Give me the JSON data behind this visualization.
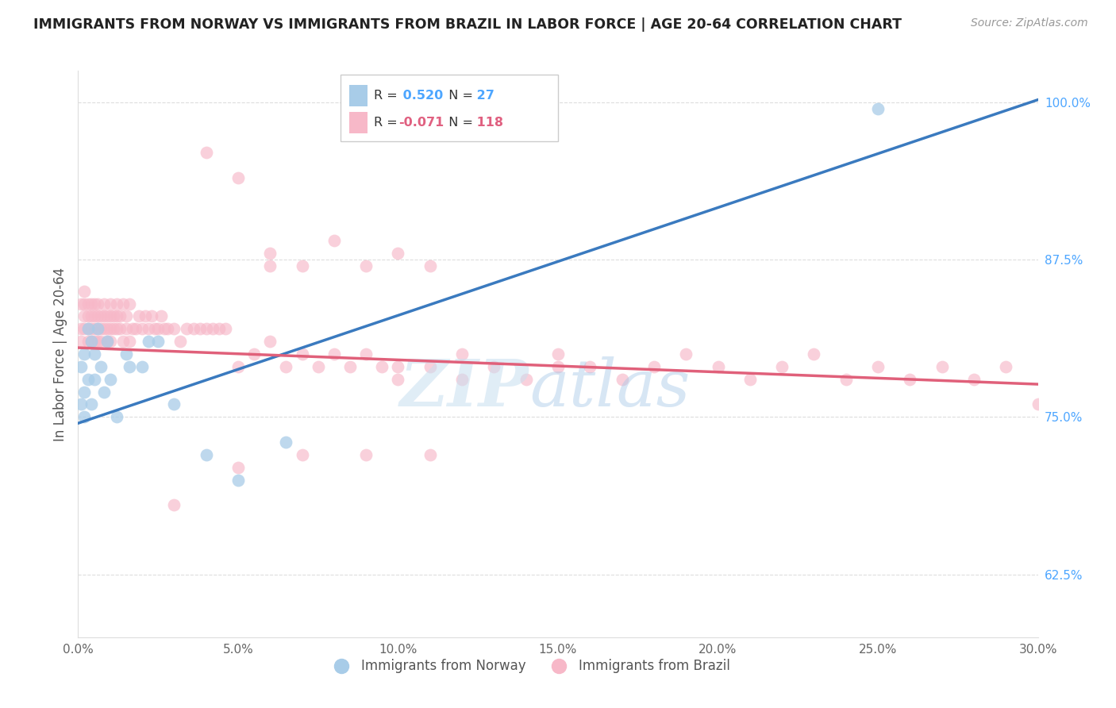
{
  "title": "IMMIGRANTS FROM NORWAY VS IMMIGRANTS FROM BRAZIL IN LABOR FORCE | AGE 20-64 CORRELATION CHART",
  "source": "Source: ZipAtlas.com",
  "ylabel": "In Labor Force | Age 20-64",
  "legend_norway": "Immigrants from Norway",
  "legend_brazil": "Immigrants from Brazil",
  "R_norway": 0.52,
  "N_norway": 27,
  "R_brazil": -0.071,
  "N_brazil": 118,
  "norway_color": "#a8cce8",
  "brazil_color": "#f7b8c8",
  "norway_line_color": "#3a7abf",
  "brazil_line_color": "#e0607a",
  "xmin": 0.0,
  "xmax": 0.3,
  "ymin": 0.575,
  "ymax": 1.025,
  "yticks": [
    0.625,
    0.75,
    0.875,
    1.0
  ],
  "ytick_labels": [
    "62.5%",
    "75.0%",
    "87.5%",
    "100.0%"
  ],
  "norway_x": [
    0.001,
    0.001,
    0.002,
    0.002,
    0.002,
    0.003,
    0.003,
    0.004,
    0.004,
    0.005,
    0.005,
    0.006,
    0.007,
    0.008,
    0.009,
    0.01,
    0.012,
    0.015,
    0.016,
    0.02,
    0.022,
    0.025,
    0.03,
    0.04,
    0.05,
    0.065,
    0.25
  ],
  "norway_y": [
    0.76,
    0.79,
    0.75,
    0.8,
    0.77,
    0.82,
    0.78,
    0.76,
    0.81,
    0.78,
    0.8,
    0.82,
    0.79,
    0.77,
    0.81,
    0.78,
    0.75,
    0.8,
    0.79,
    0.79,
    0.81,
    0.81,
    0.76,
    0.72,
    0.7,
    0.73,
    0.995
  ],
  "brazil_x": [
    0.001,
    0.001,
    0.001,
    0.002,
    0.002,
    0.002,
    0.002,
    0.003,
    0.003,
    0.003,
    0.003,
    0.004,
    0.004,
    0.004,
    0.004,
    0.005,
    0.005,
    0.005,
    0.005,
    0.006,
    0.006,
    0.006,
    0.006,
    0.007,
    0.007,
    0.007,
    0.008,
    0.008,
    0.008,
    0.009,
    0.009,
    0.009,
    0.01,
    0.01,
    0.01,
    0.01,
    0.011,
    0.011,
    0.012,
    0.012,
    0.012,
    0.013,
    0.013,
    0.014,
    0.014,
    0.015,
    0.015,
    0.016,
    0.016,
    0.017,
    0.018,
    0.019,
    0.02,
    0.021,
    0.022,
    0.023,
    0.024,
    0.025,
    0.026,
    0.027,
    0.028,
    0.03,
    0.032,
    0.034,
    0.036,
    0.038,
    0.04,
    0.042,
    0.044,
    0.046,
    0.05,
    0.055,
    0.06,
    0.065,
    0.07,
    0.075,
    0.08,
    0.085,
    0.09,
    0.095,
    0.1,
    0.11,
    0.12,
    0.13,
    0.14,
    0.15,
    0.06,
    0.07,
    0.08,
    0.09,
    0.1,
    0.11,
    0.04,
    0.05,
    0.06,
    0.1,
    0.12,
    0.15,
    0.16,
    0.17,
    0.18,
    0.19,
    0.2,
    0.21,
    0.22,
    0.23,
    0.24,
    0.25,
    0.26,
    0.27,
    0.28,
    0.29,
    0.03,
    0.05,
    0.07,
    0.09,
    0.11,
    0.3
  ],
  "brazil_y": [
    0.82,
    0.84,
    0.81,
    0.83,
    0.85,
    0.82,
    0.84,
    0.81,
    0.83,
    0.82,
    0.84,
    0.82,
    0.83,
    0.81,
    0.84,
    0.82,
    0.83,
    0.81,
    0.84,
    0.82,
    0.83,
    0.81,
    0.84,
    0.82,
    0.83,
    0.81,
    0.82,
    0.83,
    0.84,
    0.82,
    0.83,
    0.81,
    0.82,
    0.83,
    0.84,
    0.81,
    0.82,
    0.83,
    0.82,
    0.83,
    0.84,
    0.82,
    0.83,
    0.81,
    0.84,
    0.82,
    0.83,
    0.81,
    0.84,
    0.82,
    0.82,
    0.83,
    0.82,
    0.83,
    0.82,
    0.83,
    0.82,
    0.82,
    0.83,
    0.82,
    0.82,
    0.82,
    0.81,
    0.82,
    0.82,
    0.82,
    0.82,
    0.82,
    0.82,
    0.82,
    0.79,
    0.8,
    0.81,
    0.79,
    0.8,
    0.79,
    0.8,
    0.79,
    0.8,
    0.79,
    0.78,
    0.79,
    0.8,
    0.79,
    0.78,
    0.79,
    0.88,
    0.87,
    0.89,
    0.87,
    0.88,
    0.87,
    0.96,
    0.94,
    0.87,
    0.79,
    0.78,
    0.8,
    0.79,
    0.78,
    0.79,
    0.8,
    0.79,
    0.78,
    0.79,
    0.8,
    0.78,
    0.79,
    0.78,
    0.79,
    0.78,
    0.79,
    0.68,
    0.71,
    0.72,
    0.72,
    0.72,
    0.76
  ],
  "norway_line_x0": 0.0,
  "norway_line_y0": 0.745,
  "norway_line_x1": 0.3,
  "norway_line_y1": 1.002,
  "brazil_line_x0": 0.0,
  "brazil_line_y0": 0.805,
  "brazil_line_x1": 0.3,
  "brazil_line_y1": 0.776
}
